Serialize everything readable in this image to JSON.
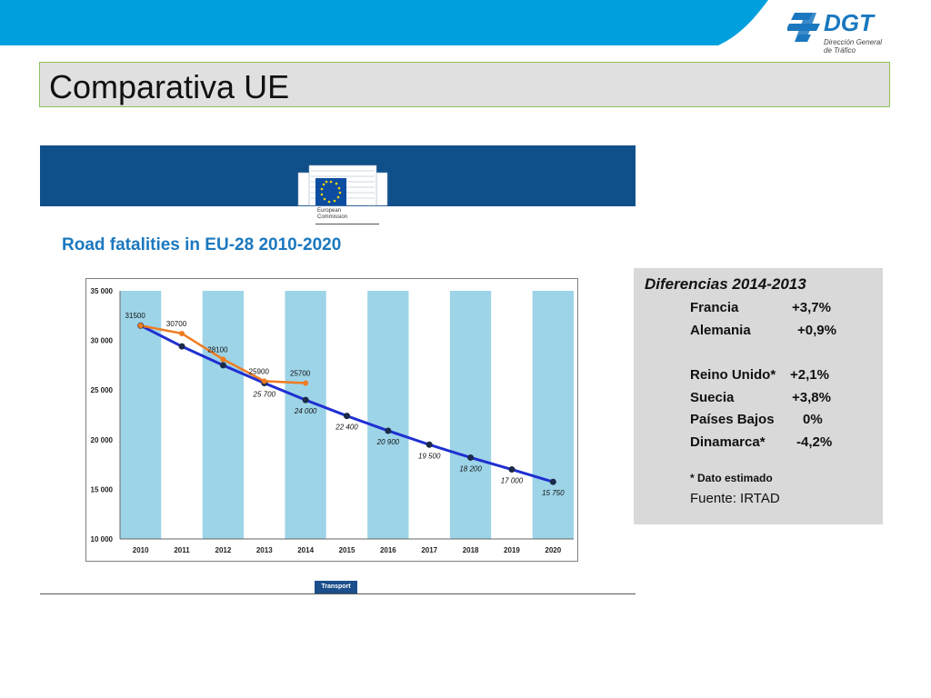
{
  "brand": {
    "name": "DGT",
    "subtitle_line1": "Dirección General",
    "subtitle_line2": "de Tráfico",
    "band_color": "#00a0de",
    "logo_color": "#1b78bf"
  },
  "slide": {
    "title": "Comparativa UE"
  },
  "ec": {
    "label_line1": "European",
    "label_line2": "Commission",
    "footer_tag": "Transport"
  },
  "chart_title": "Road fatalities in EU-28 2010-2020",
  "chart_data": {
    "type": "line",
    "title": "Road fatalities in EU-28 2010-2020",
    "categories": [
      "2010",
      "2011",
      "2012",
      "2013",
      "2014",
      "2015",
      "2016",
      "2017",
      "2018",
      "2019",
      "2020"
    ],
    "ylim": [
      10000,
      35000
    ],
    "yticks": [
      10000,
      15000,
      20000,
      25000,
      30000,
      35000
    ],
    "ytick_labels": [
      "10 000",
      "15 000",
      "20 000",
      "25 000",
      "30 000",
      "35 000"
    ],
    "series": [
      {
        "color": "#1f2fd0",
        "values": [
          31500,
          29400,
          27500,
          25700,
          24000,
          22400,
          20900,
          19500,
          18200,
          17000,
          15750
        ],
        "labels": [
          "",
          "",
          "",
          "25 700",
          "24 000",
          "22 400",
          "20 900",
          "19 500",
          "18 200",
          "17 000",
          "15 750"
        ]
      },
      {
        "color": "#ef7b21",
        "values": [
          31500,
          30700,
          28100,
          25900,
          25700,
          null,
          null,
          null,
          null,
          null,
          null
        ],
        "labels": [
          "31500",
          "30700",
          "28100",
          "25900",
          "25700",
          "",
          "",
          "",
          "",
          "",
          ""
        ]
      }
    ],
    "column_colors": [
      "#9dd4e8",
      "#ffffff"
    ],
    "grid": false
  },
  "differences": {
    "title": "Diferencias 2014-2013",
    "rows": [
      {
        "country": "Francia",
        "value": "+3,7%"
      },
      {
        "country": "Alemania",
        "value": "+0,9%"
      },
      {
        "country": "Reino Unido*",
        "value": "+2,1%"
      },
      {
        "country": "Suecia",
        "value": "+3,8%"
      },
      {
        "country": "Países Bajos",
        "value": "0%"
      },
      {
        "country": "Dinamarca*",
        "value": "-4,2%"
      }
    ],
    "note": "* Dato estimado",
    "source": "Fuente: IRTAD"
  }
}
